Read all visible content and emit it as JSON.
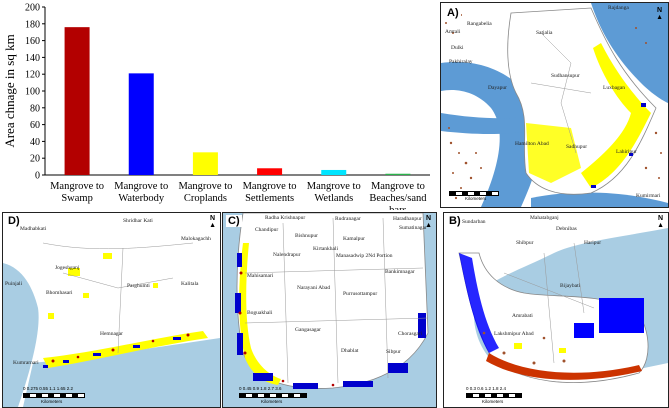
{
  "chart_data": {
    "type": "bar",
    "ylabel": "Area chnage in sq km",
    "ylim": [
      0,
      200
    ],
    "yticks": [
      0,
      20,
      40,
      60,
      80,
      100,
      120,
      140,
      160,
      180,
      200
    ],
    "categories": [
      [
        "Mangrove to",
        "Swamp"
      ],
      [
        "Mangrove to",
        "Waterbody"
      ],
      [
        "Mangrove to",
        "Croplands"
      ],
      [
        "Mangrove to",
        "Settlements"
      ],
      [
        "Mangrove to",
        "Wetlands"
      ],
      [
        "Mangrove to",
        "Beaches/sand",
        "bars"
      ]
    ],
    "values": [
      176,
      121,
      27,
      8,
      6,
      1.5
    ],
    "colors": [
      "#b30000",
      "#0000ff",
      "#ffff00",
      "#ff0000",
      "#00e5ff",
      "#2bb24c"
    ],
    "grid": false
  },
  "panels": {
    "a": {
      "letter": "A)",
      "places": [
        "Rajdanga",
        "Rangabelia",
        "Amtali",
        "Dulki",
        "Pakhiralay",
        "Satjalia",
        "Sudhansupur",
        "Dayapur",
        "Luxbagan",
        "Hamilton Abad",
        "Sadhupur",
        "Lahiripur",
        "Kumirmari"
      ],
      "scale": "Kilometers",
      "north": "N"
    },
    "b": {
      "letter": "B)",
      "places": [
        "Sundarban",
        "Mahatabganj",
        "Debnibas",
        "Shibpur",
        "Haripur",
        "Bijaybati",
        "Amrabati",
        "Lakshmipur Abad"
      ],
      "scale": "Kilometers",
      "scale_ticks": "0  0.3 0.6   1.2   1.8   2.4",
      "north": "N"
    },
    "c": {
      "letter": "C)",
      "places": [
        "Radha Krishnapur",
        "Rudranagar",
        "Haradhanpur",
        "Sumatinagar",
        "Chandipur",
        "Bishnupur",
        "Kamalpur",
        "Kirtankhali",
        "Nalendrapur",
        "Manasadwip 2Nd Portion",
        "Bankimnagar",
        "Mahisamari",
        "Narayani Abad",
        "Purrusottampur",
        "Boguakhali",
        "Gangasagar",
        "Dhablat",
        "Sibpur",
        "Chorasgari"
      ],
      "scale": "Kilometers",
      "scale_ticks": "0  0.45 0.9   1.8   2.7   3.6",
      "north": "N"
    },
    "d": {
      "letter": "D)",
      "places": [
        "Shridhar Kati",
        "Madhabkati",
        "Malokagachh",
        "Jogeshganj",
        "Parghumti",
        "Kalitala",
        "Puinjali",
        "Bhomhasari",
        "Hemnagar",
        "Kumrarnari"
      ],
      "scale": "Kilometers",
      "scale_ticks": "0 0.275 0.55   1.1   1.65   2.2",
      "north": "N"
    }
  }
}
